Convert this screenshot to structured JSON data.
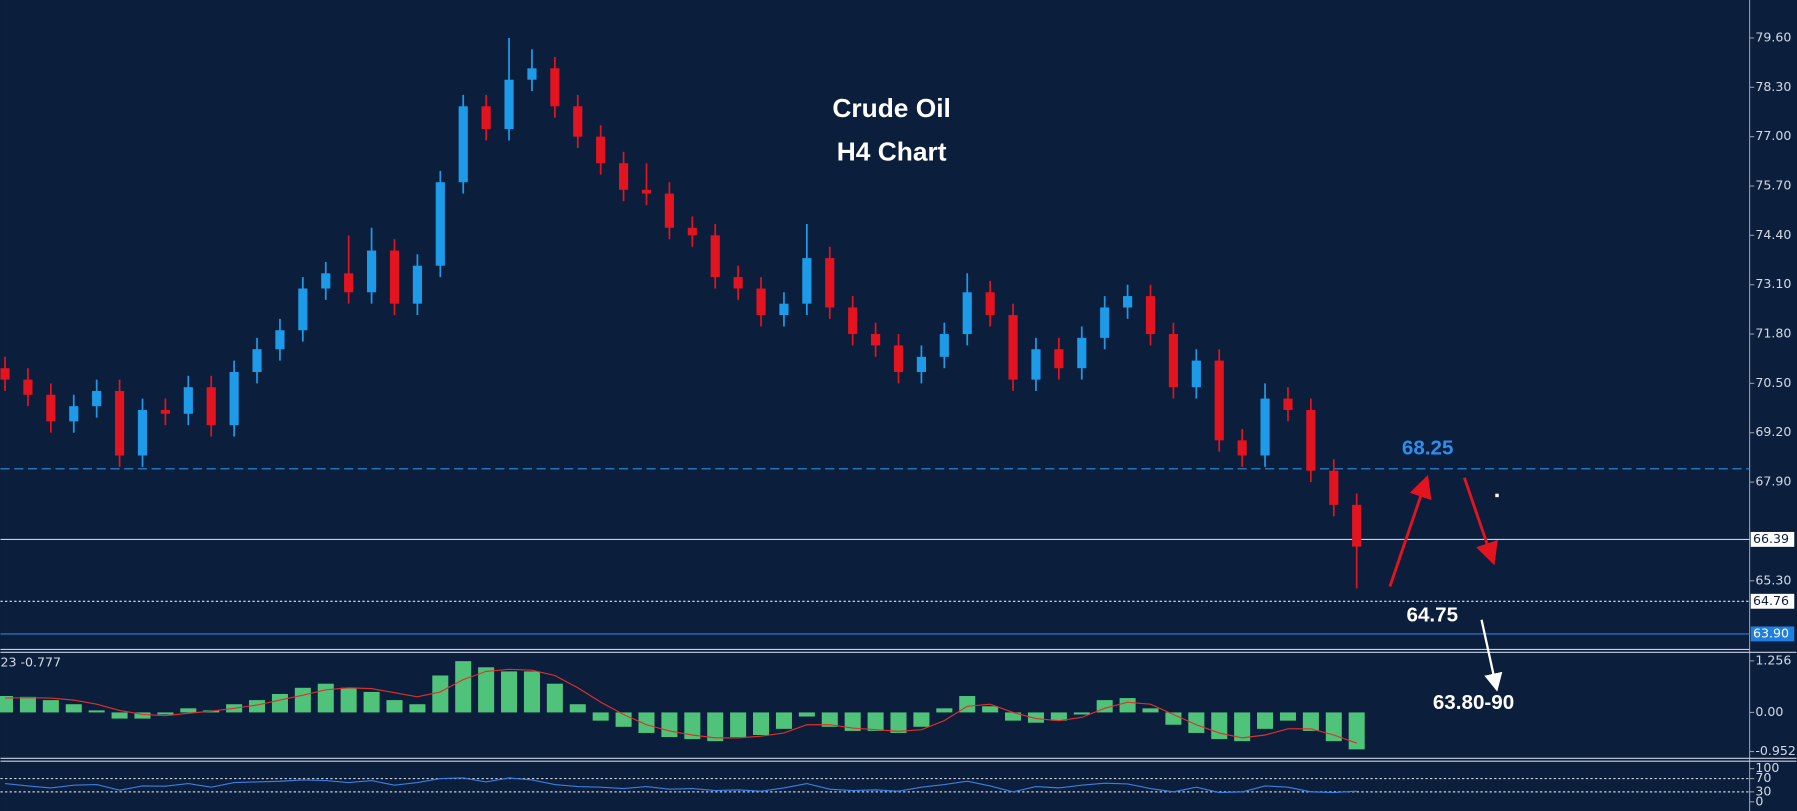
{
  "chart_data": [
    {
      "type": "candlestick",
      "annotations": [
        "Crude Oil",
        "H4 Chart",
        "68.25",
        "64.75",
        "63.80-90"
      ],
      "up_color": "#1e9be8",
      "down_color": "#e3141f",
      "open": [
        70.9,
        70.6,
        70.2,
        69.5,
        69.9,
        70.3,
        68.6,
        69.8,
        69.7,
        70.4,
        69.4,
        70.8,
        71.4,
        71.9,
        73.0,
        73.4,
        72.9,
        74.0,
        72.6,
        73.6,
        75.8,
        77.8,
        77.2,
        78.5,
        78.8,
        77.8,
        77.0,
        76.3,
        75.6,
        75.5,
        74.6,
        74.4,
        73.3,
        73.0,
        72.3,
        72.6,
        73.8,
        72.5,
        71.8,
        71.5,
        70.8,
        71.2,
        71.8,
        72.9,
        72.3,
        70.6,
        71.4,
        70.9,
        71.7,
        72.5,
        72.8,
        71.8,
        70.4,
        71.1,
        69.0,
        68.6,
        70.1,
        69.8,
        68.2,
        67.3
      ],
      "high": [
        71.2,
        70.9,
        70.5,
        70.2,
        70.6,
        70.6,
        70.1,
        70.1,
        70.7,
        70.7,
        71.1,
        71.7,
        72.2,
        73.3,
        73.7,
        74.4,
        74.6,
        74.3,
        73.9,
        76.1,
        78.1,
        78.1,
        79.6,
        79.3,
        79.1,
        78.1,
        77.3,
        76.6,
        76.3,
        75.8,
        74.9,
        74.7,
        73.6,
        73.3,
        72.9,
        74.7,
        74.1,
        72.8,
        72.1,
        71.8,
        71.5,
        72.1,
        73.4,
        73.2,
        72.6,
        71.7,
        71.7,
        72.0,
        72.8,
        73.1,
        73.1,
        72.1,
        71.4,
        71.4,
        69.3,
        70.5,
        70.4,
        70.1,
        68.5,
        67.6
      ],
      "low": [
        70.3,
        69.9,
        69.2,
        69.2,
        69.6,
        68.3,
        68.3,
        69.4,
        69.4,
        69.1,
        69.1,
        70.5,
        71.1,
        71.6,
        72.7,
        72.6,
        72.6,
        72.3,
        72.3,
        73.3,
        75.5,
        76.9,
        76.9,
        78.2,
        77.5,
        76.7,
        76.0,
        75.3,
        75.2,
        74.3,
        74.1,
        73.0,
        72.7,
        72.0,
        72.0,
        72.3,
        72.2,
        71.5,
        71.2,
        70.5,
        70.5,
        70.9,
        71.5,
        72.0,
        70.3,
        70.3,
        70.6,
        70.6,
        71.4,
        72.2,
        71.5,
        70.1,
        70.1,
        68.7,
        68.3,
        68.3,
        69.5,
        67.9,
        67.0,
        65.1
      ],
      "close": [
        70.6,
        70.2,
        69.5,
        69.9,
        70.3,
        68.6,
        69.8,
        69.7,
        70.4,
        69.4,
        70.8,
        71.4,
        71.9,
        73.0,
        73.4,
        72.9,
        74.0,
        72.6,
        73.6,
        75.8,
        77.8,
        77.2,
        78.5,
        78.8,
        77.8,
        77.0,
        76.3,
        75.6,
        75.5,
        74.6,
        74.4,
        73.3,
        73.0,
        72.3,
        72.6,
        73.8,
        72.5,
        71.8,
        71.5,
        70.8,
        71.2,
        71.8,
        72.9,
        72.3,
        70.6,
        71.4,
        70.9,
        71.7,
        72.5,
        72.8,
        71.8,
        70.4,
        71.1,
        69.0,
        68.6,
        70.1,
        69.8,
        68.2,
        67.3,
        66.2
      ],
      "ylim": [
        63.49,
        80.6
      ],
      "yticks": [
        {
          "value": 79.6,
          "label": "79.60"
        },
        {
          "value": 78.3,
          "label": "78.30"
        },
        {
          "value": 77.0,
          "label": "77.00"
        },
        {
          "value": 75.7,
          "label": "75.70"
        },
        {
          "value": 74.4,
          "label": "74.40"
        },
        {
          "value": 73.1,
          "label": "73.10"
        },
        {
          "value": 71.8,
          "label": "71.80"
        },
        {
          "value": 70.5,
          "label": "70.50"
        },
        {
          "value": 69.2,
          "label": "69.20"
        },
        {
          "value": 67.9,
          "label": "67.90"
        },
        {
          "value": 65.3,
          "label": "65.30"
        }
      ],
      "levels": [
        {
          "value": 68.25,
          "style": "dashed",
          "color": "#2e8fe0"
        },
        {
          "value": 66.39,
          "style": "solid",
          "color": "#c9d1df",
          "tag_color": "#ffffff",
          "tag_text_color": "#0b1e3c"
        },
        {
          "value": 64.76,
          "style": "dotted",
          "color": "#e6e9ef",
          "tag_color": "#ffffff",
          "tag_text_color": "#0b1e3c"
        },
        {
          "value": 63.9,
          "label": "63.90",
          "style": "solid",
          "color": "#2f7fe0",
          "tag_color": "#1e7fe0",
          "tag_text_color": "#ffffff"
        }
      ]
    },
    {
      "type": "macd",
      "label": "23 -0.777",
      "color": "#4fc37a",
      "signal_color": "#e0302a",
      "values": [
        0.4,
        0.38,
        0.3,
        0.2,
        0.05,
        -0.15,
        -0.15,
        -0.05,
        0.1,
        0.05,
        0.2,
        0.3,
        0.45,
        0.6,
        0.7,
        0.6,
        0.5,
        0.3,
        0.2,
        0.9,
        1.25,
        1.1,
        1.0,
        1.0,
        0.7,
        0.2,
        -0.2,
        -0.35,
        -0.5,
        -0.6,
        -0.65,
        -0.7,
        -0.6,
        -0.55,
        -0.4,
        -0.1,
        -0.35,
        -0.45,
        -0.45,
        -0.5,
        -0.35,
        0.1,
        0.4,
        0.15,
        -0.2,
        -0.25,
        -0.2,
        -0.05,
        0.3,
        0.35,
        0.1,
        -0.3,
        -0.5,
        -0.65,
        -0.7,
        -0.4,
        -0.2,
        -0.45,
        -0.7,
        -0.9
      ],
      "signal": [
        0.35,
        0.36,
        0.35,
        0.3,
        0.2,
        0.05,
        -0.05,
        -0.08,
        -0.02,
        0.03,
        0.1,
        0.18,
        0.3,
        0.42,
        0.55,
        0.6,
        0.58,
        0.48,
        0.38,
        0.5,
        0.8,
        1.0,
        1.05,
        1.03,
        0.9,
        0.6,
        0.25,
        -0.05,
        -0.3,
        -0.45,
        -0.55,
        -0.62,
        -0.62,
        -0.58,
        -0.5,
        -0.3,
        -0.3,
        -0.38,
        -0.42,
        -0.46,
        -0.42,
        -0.2,
        0.15,
        0.2,
        0.0,
        -0.15,
        -0.2,
        -0.12,
        0.1,
        0.25,
        0.2,
        -0.05,
        -0.3,
        -0.5,
        -0.62,
        -0.55,
        -0.4,
        -0.4,
        -0.55,
        -0.75
      ],
      "ylim": [
        -1.09,
        1.45
      ],
      "yticks": [
        {
          "value": 1.256,
          "label": "1.256"
        },
        {
          "value": 0,
          "label": "0.00"
        },
        {
          "value": -0.952,
          "label": "-0.952"
        }
      ]
    },
    {
      "type": "line",
      "color": "#3b7fe0",
      "level_lines": [
        70,
        30
      ],
      "values": [
        55,
        48,
        42,
        50,
        52,
        35,
        48,
        47,
        55,
        44,
        58,
        60,
        62,
        66,
        64,
        58,
        64,
        50,
        58,
        70,
        72,
        60,
        72,
        66,
        52,
        46,
        44,
        40,
        46,
        38,
        40,
        34,
        36,
        32,
        42,
        55,
        38,
        34,
        36,
        32,
        44,
        52,
        62,
        48,
        30,
        46,
        42,
        50,
        56,
        54,
        40,
        30,
        44,
        28,
        30,
        48,
        44,
        30,
        28,
        32
      ],
      "ylim": [
        -27.6,
        120.7
      ],
      "yticks": [
        100,
        70,
        30,
        0
      ]
    }
  ]
}
